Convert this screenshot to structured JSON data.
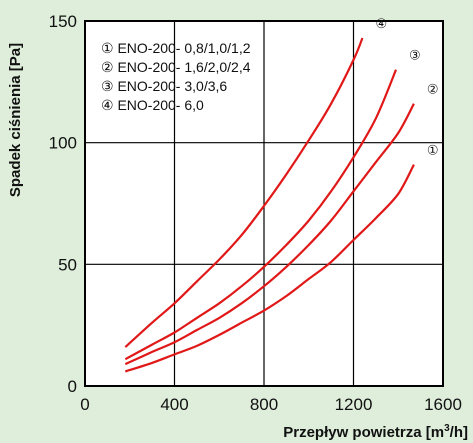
{
  "chart_data": {
    "type": "line",
    "xlabel": "Przepływ powietrza [m³/h]",
    "ylabel": "Spadek ciśnienia [Pa]",
    "xlim": [
      0,
      1600
    ],
    "ylim": [
      0,
      150
    ],
    "xticks": [
      "0",
      "400",
      "800",
      "1200",
      "1600"
    ],
    "yticks": [
      "0",
      "50",
      "100",
      "150"
    ],
    "grid": true,
    "legend_position": "top-left",
    "line_color": "#e01818",
    "series": [
      {
        "name": "① ENO-200- 0,8/1,0/1,2",
        "curve_label": "①",
        "x": [
          180,
          300,
          400,
          500,
          600,
          700,
          800,
          900,
          1000,
          1100,
          1200,
          1300,
          1400,
          1470
        ],
        "y": [
          6,
          9.5,
          13,
          16.5,
          21,
          26,
          31,
          37,
          44,
          51,
          60,
          69,
          79,
          91
        ]
      },
      {
        "name": "② ENO-200- 1,6/2,0/2,4",
        "curve_label": "②",
        "x": [
          180,
          300,
          400,
          500,
          600,
          700,
          800,
          900,
          1000,
          1100,
          1200,
          1300,
          1400,
          1470
        ],
        "y": [
          9,
          14,
          18,
          23,
          28,
          34,
          41,
          49,
          58,
          68,
          80,
          92,
          104,
          116
        ]
      },
      {
        "name": "③ ENO-200- 3,0/3,6",
        "curve_label": "③",
        "x": [
          180,
          300,
          400,
          500,
          600,
          700,
          800,
          900,
          1000,
          1100,
          1200,
          1300,
          1390
        ],
        "y": [
          11,
          17,
          22,
          28,
          34,
          41,
          49,
          58,
          68,
          80,
          94,
          110,
          130
        ]
      },
      {
        "name": "④ ENO-200- 6,0",
        "curve_label": "④",
        "x": [
          180,
          300,
          400,
          500,
          600,
          700,
          800,
          900,
          1000,
          1100,
          1200,
          1240
        ],
        "y": [
          16,
          26,
          34,
          43,
          52,
          62,
          74,
          87,
          101,
          116,
          134,
          143
        ]
      }
    ]
  }
}
